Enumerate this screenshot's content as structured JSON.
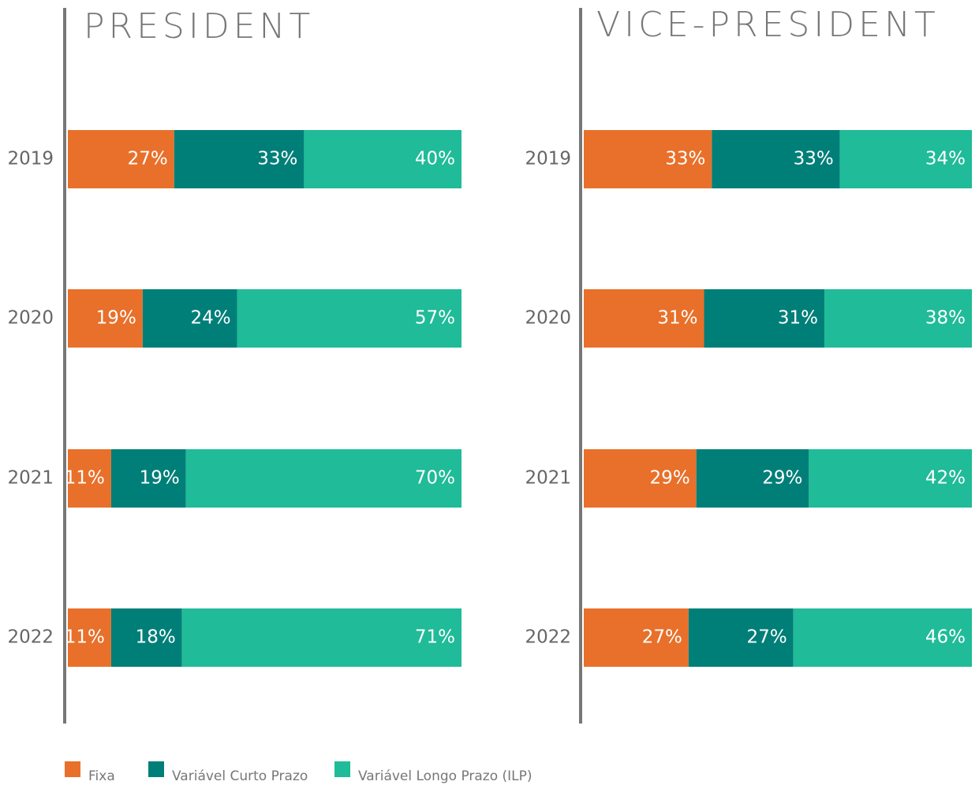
{
  "chart_data": [
    {
      "type": "stacked_bar_h",
      "title": "PRESIDENT",
      "categories": [
        "2019",
        "2020",
        "2021",
        "2022"
      ],
      "series": [
        {
          "name": "Fixa",
          "color": "#e8702a",
          "values": [
            27,
            19,
            11,
            11
          ],
          "value_labels": [
            "27%",
            "19%",
            "11%",
            "11%"
          ]
        },
        {
          "name": "Variável Curto Prazo",
          "color": "#007f78",
          "values": [
            33,
            24,
            19,
            18
          ],
          "value_labels": [
            "33%",
            "24%",
            "19%",
            "18%"
          ]
        },
        {
          "name": "Variável Longo Prazo (ILP)",
          "color": "#20bb98",
          "values": [
            40,
            57,
            70,
            71
          ],
          "value_labels": [
            "40%",
            "57%",
            "70%",
            "71%"
          ]
        }
      ]
    },
    {
      "type": "stacked_bar_h",
      "title": "VICE-PRESIDENT",
      "categories": [
        "2019",
        "2020",
        "2021",
        "2022"
      ],
      "series": [
        {
          "name": "Fixa",
          "color": "#e8702a",
          "values": [
            33,
            31,
            29,
            27
          ],
          "value_labels": [
            "33%",
            "31%",
            "29%",
            "27%"
          ]
        },
        {
          "name": "Variável Curto Prazo",
          "color": "#007f78",
          "values": [
            33,
            31,
            29,
            27
          ],
          "value_labels": [
            "33%",
            "31%",
            "29%",
            "27%"
          ]
        },
        {
          "name": "Variável Longo Prazo (ILP)",
          "color": "#20bb98",
          "values": [
            34,
            38,
            42,
            46
          ],
          "value_labels": [
            "34%",
            "38%",
            "42%",
            "46%"
          ]
        }
      ]
    }
  ]
}
